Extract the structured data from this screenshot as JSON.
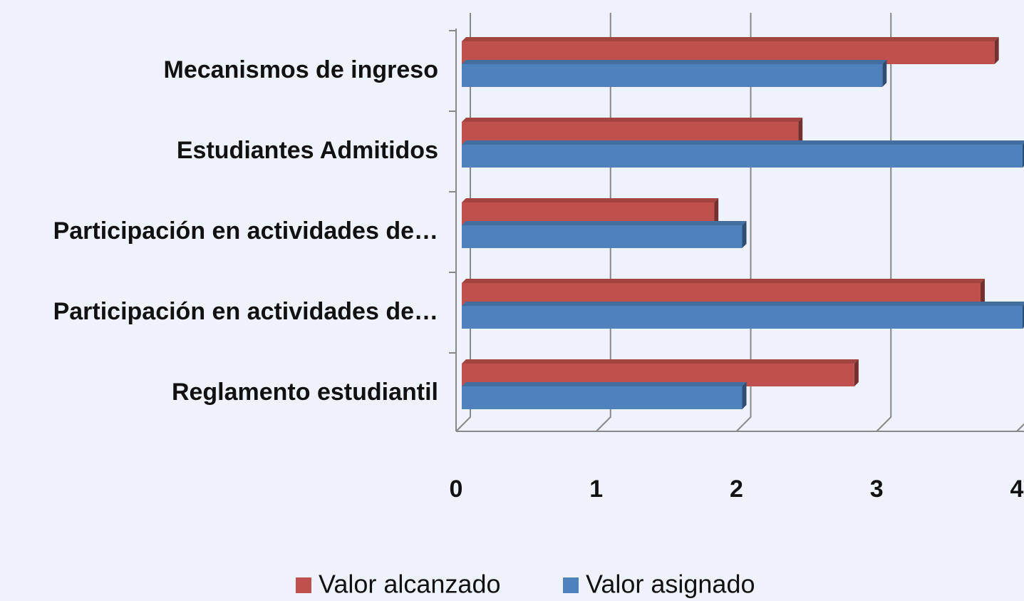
{
  "chart_data": {
    "type": "bar",
    "orientation": "horizontal",
    "categories": [
      "Mecanismos de ingreso",
      "Estudiantes Admitidos",
      "Participación en  actividades  de…",
      "Participación en  actividades  de…",
      "Reglamento estudiantil"
    ],
    "series": [
      {
        "name": "Valor alcanzado",
        "color": "#c0504d",
        "values": [
          3.8,
          2.4,
          1.8,
          3.7,
          2.8
        ]
      },
      {
        "name": "Valor asignado",
        "color": "#4f81bd",
        "values": [
          3.0,
          4.0,
          2.0,
          4.0,
          2.0
        ]
      }
    ],
    "xlim": [
      0,
      4
    ],
    "xticks": [
      0,
      1,
      2,
      3,
      4
    ],
    "grid": true,
    "legend": "bottom"
  }
}
